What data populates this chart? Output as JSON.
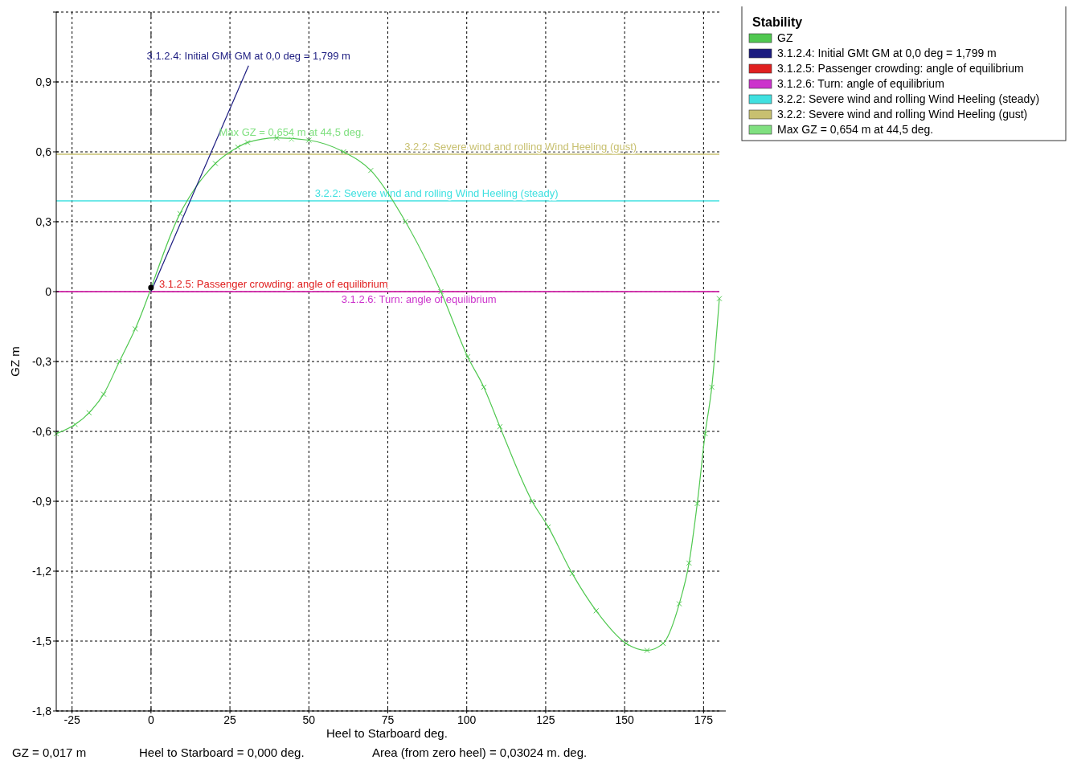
{
  "chart_data": {
    "type": "line",
    "xlabel": "Heel to Starboard   deg.",
    "ylabel": "GZ  m",
    "legend_title": "Stability",
    "legend": "top right",
    "grid": true,
    "xlim": [
      -30,
      180
    ],
    "xticks": [
      -25,
      0,
      25,
      50,
      75,
      100,
      125,
      150,
      175
    ],
    "ylim": [
      -1.8,
      1.2
    ],
    "yticks": [
      {
        "value": -1.8,
        "label": "-1,8"
      },
      {
        "value": -1.5,
        "label": "-1,5"
      },
      {
        "value": -1.2,
        "label": "-1,2"
      },
      {
        "value": -0.9,
        "label": "-0,9"
      },
      {
        "value": -0.6,
        "label": "-0,6"
      },
      {
        "value": -0.3,
        "label": "-0,3"
      },
      {
        "value": 0,
        "label": "0"
      },
      {
        "value": 0.3,
        "label": "0,3"
      },
      {
        "value": 0.6,
        "label": "0,6"
      },
      {
        "value": 0.9,
        "label": "0,9"
      },
      {
        "value": 1.2,
        "label": null
      }
    ],
    "series": [
      {
        "name": "GZ",
        "color": "#50c850",
        "marker": "cross",
        "x": [
          -30,
          -24,
          -19.6,
          -15,
          -10,
          -5,
          9.2,
          20.4,
          27.5,
          30.6,
          39.8,
          50,
          61,
          69.6,
          80.6,
          91.8,
          100.3,
          105.4,
          110.5,
          120.7,
          125.8,
          133.4,
          141,
          150.5,
          157.1,
          162.2,
          167.3,
          170.4,
          173,
          175.5,
          177.6,
          180
        ],
        "values": [
          -0.61,
          -0.57,
          -0.52,
          -0.44,
          -0.3,
          -0.16,
          0.335,
          0.55,
          0.62,
          0.64,
          0.66,
          0.65,
          0.6,
          0.52,
          0.3,
          0,
          -0.28,
          -0.41,
          -0.58,
          -0.9,
          -1.01,
          -1.21,
          -1.37,
          -1.51,
          -1.54,
          -1.51,
          -1.34,
          -1.165,
          -0.91,
          -0.61,
          -0.41,
          -0.03
        ]
      },
      {
        "name": "3.1.2.4: Initial GMt GM at 0,0 deg = 1,799 m",
        "type": "line",
        "color": "#1c1c80",
        "marker": "none",
        "x": [
          0,
          30.9
        ],
        "values": [
          0,
          0.97
        ]
      },
      {
        "name": "Max GZ = 0,654 m at 44,5 deg.",
        "type": "scatter",
        "color": "#80e080",
        "marker": "cross",
        "x": [
          44.5
        ],
        "values": [
          0.654
        ]
      },
      {
        "type": "scatter",
        "color": "#000000",
        "marker": "circle",
        "x": [
          0
        ],
        "values": [
          0.017
        ]
      }
    ],
    "ref_lines": [
      {
        "axis": "x",
        "value": 0,
        "color": "#555555",
        "line_style": "dashed"
      },
      {
        "axis": "y",
        "value": 0,
        "label": "3.1.2.5: Passenger crowding: angle of equilibrium",
        "color": "#e02020",
        "line_style": "solid"
      },
      {
        "axis": "y",
        "value": 0,
        "label": "3.1.2.6: Turn: angle of equilibrium",
        "color": "#cc33cc",
        "line_style": "solid"
      },
      {
        "axis": "y",
        "value": 0.39,
        "label": "3.2.2: Severe wind and rolling Wind Heeling (steady)",
        "color": "#40e0e0",
        "line_style": "solid"
      },
      {
        "axis": "y",
        "value": 0.59,
        "label": "3.2.2: Severe wind and rolling Wind Heeling (gust)",
        "color": "#c8c070",
        "line_style": "solid"
      }
    ],
    "annotations": [
      "GZ =  0,017 m",
      "Heel to Starboard =  0,000  deg.",
      "Area (from zero heel) =  0,03024 m. deg."
    ]
  }
}
